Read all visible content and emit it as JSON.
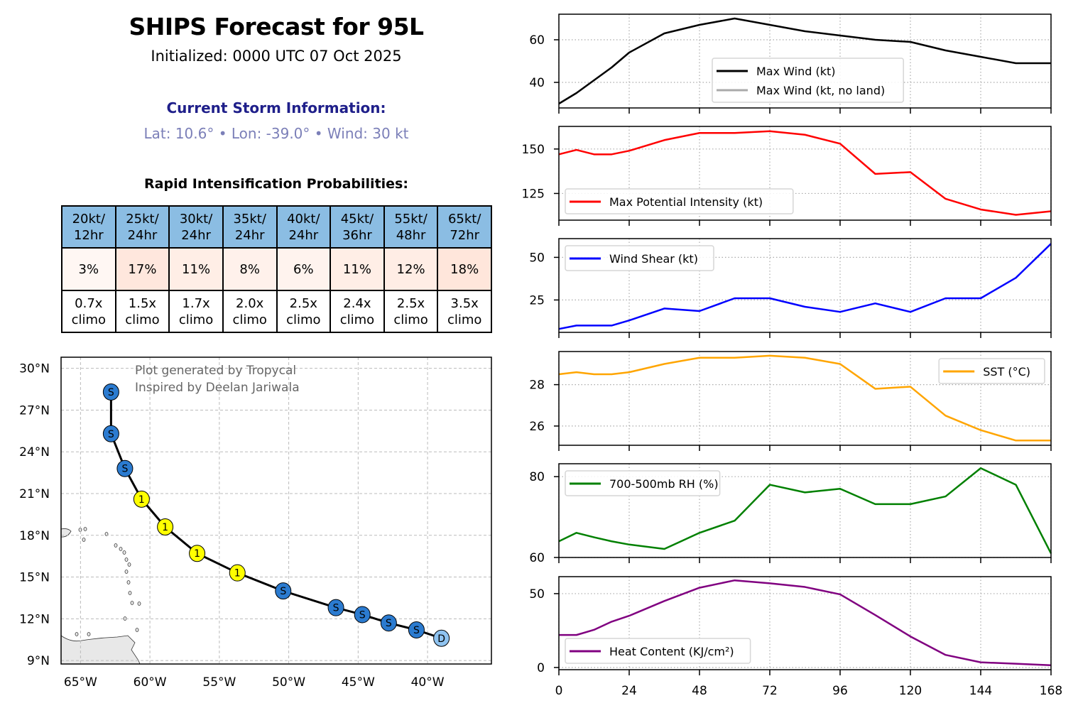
{
  "header": {
    "title": "SHIPS Forecast for 95L",
    "initialized": "Initialized: 0000 UTC 07 Oct 2025",
    "current_heading": "Current Storm Information:",
    "current_values": "Lat: 10.6° • Lon: -39.0° • Wind: 30 kt"
  },
  "ri_table": {
    "heading": "Rapid Intensification Probabilities:",
    "columns": [
      {
        "threshold": "20kt/",
        "period": "12hr",
        "prob": "3%",
        "climo_mult": "0.7x",
        "climo": "climo",
        "p": 3
      },
      {
        "threshold": "25kt/",
        "period": "24hr",
        "prob": "17%",
        "climo_mult": "1.5x",
        "climo": "climo",
        "p": 17
      },
      {
        "threshold": "30kt/",
        "period": "24hr",
        "prob": "11%",
        "climo_mult": "1.7x",
        "climo": "climo",
        "p": 11
      },
      {
        "threshold": "35kt/",
        "period": "24hr",
        "prob": "8%",
        "climo_mult": "2.0x",
        "climo": "climo",
        "p": 8
      },
      {
        "threshold": "40kt/",
        "period": "24hr",
        "prob": "6%",
        "climo_mult": "2.5x",
        "climo": "climo",
        "p": 6
      },
      {
        "threshold": "45kt/",
        "period": "36hr",
        "prob": "11%",
        "climo_mult": "2.4x",
        "climo": "climo",
        "p": 11
      },
      {
        "threshold": "55kt/",
        "period": "48hr",
        "prob": "12%",
        "climo_mult": "2.5x",
        "climo": "climo",
        "p": 12
      },
      {
        "threshold": "65kt/",
        "period": "72hr",
        "prob": "18%",
        "climo_mult": "3.5x",
        "climo": "climo",
        "p": 18
      }
    ]
  },
  "map": {
    "credit_line1": "Plot generated by Tropycal",
    "credit_line2": "Inspired by Deelan Jariwala",
    "lon_ticks": [
      -65,
      -60,
      -55,
      -50,
      -45,
      -40
    ],
    "lon_labels": [
      "65°W",
      "60°W",
      "55°W",
      "50°W",
      "45°W",
      "40°W"
    ],
    "lat_ticks": [
      30,
      27,
      24,
      21,
      18,
      15,
      12,
      9
    ],
    "lat_labels": [
      "30°N",
      "27°N",
      "24°N",
      "21°N",
      "18°N",
      "15°N",
      "12°N",
      "9°N"
    ],
    "xlim": [
      -66.4,
      -35.4
    ],
    "ylim": [
      8.75,
      30.8
    ],
    "track": [
      {
        "lon": -39.0,
        "lat": 10.6,
        "cat": "D"
      },
      {
        "lon": -40.8,
        "lat": 11.2,
        "cat": "S"
      },
      {
        "lon": -42.8,
        "lat": 11.7,
        "cat": "S"
      },
      {
        "lon": -44.7,
        "lat": 12.3,
        "cat": "S"
      },
      {
        "lon": -46.6,
        "lat": 12.8,
        "cat": "S"
      },
      {
        "lon": -50.4,
        "lat": 14.0,
        "cat": "S"
      },
      {
        "lon": -53.7,
        "lat": 15.3,
        "cat": "1"
      },
      {
        "lon": -56.6,
        "lat": 16.7,
        "cat": "1"
      },
      {
        "lon": -58.9,
        "lat": 18.6,
        "cat": "1"
      },
      {
        "lon": -60.6,
        "lat": 20.6,
        "cat": "1"
      },
      {
        "lon": -61.8,
        "lat": 22.8,
        "cat": "S"
      },
      {
        "lon": -62.8,
        "lat": 25.3,
        "cat": "S"
      },
      {
        "lon": -62.8,
        "lat": 28.3,
        "cat": "S"
      }
    ],
    "category_colors": {
      "D": "#8fc3f0",
      "S": "#2b7bd0",
      "1": "#ffff00"
    }
  },
  "chart_data": [
    {
      "type": "line",
      "title": "",
      "xlabel": "",
      "ylabel": "",
      "x": [
        0,
        6,
        12,
        18,
        24,
        36,
        48,
        60,
        72,
        84,
        96,
        108,
        120,
        132,
        144,
        156,
        168
      ],
      "series": [
        {
          "name": "Max Wind (kt)",
          "color": "#000000",
          "values": [
            30,
            35,
            41,
            47,
            54,
            63,
            67,
            70,
            67,
            64,
            62,
            60,
            59,
            55,
            52,
            49,
            49
          ]
        }
      ],
      "legend_extra": [
        {
          "name": "Max Wind (kt, no land)",
          "color": "#aaaaaa"
        }
      ],
      "ylim": [
        28,
        72
      ],
      "yticks": [
        40,
        60
      ],
      "legend": "center",
      "grid": true
    },
    {
      "type": "line",
      "x": [
        0,
        6,
        12,
        18,
        24,
        36,
        48,
        60,
        72,
        84,
        96,
        108,
        120,
        132,
        144,
        156,
        168
      ],
      "series": [
        {
          "name": "Max Potential Intensity (kt)",
          "color": "#ff0000",
          "values": [
            147,
            149.5,
            147,
            147,
            149,
            155,
            159,
            159,
            160,
            158,
            153,
            136,
            137,
            122,
            116,
            113,
            115
          ]
        }
      ],
      "ylim": [
        110,
        162.7
      ],
      "yticks": [
        125,
        150
      ],
      "legend": "lower-left",
      "grid": true
    },
    {
      "type": "line",
      "x": [
        0,
        6,
        12,
        18,
        24,
        36,
        48,
        60,
        72,
        84,
        96,
        108,
        120,
        132,
        144,
        156,
        168
      ],
      "series": [
        {
          "name": "Wind Shear (kt)",
          "color": "#0000ff",
          "values": [
            8,
            10,
            10,
            10,
            13,
            20,
            18.5,
            26,
            26,
            21,
            18,
            23,
            18,
            26,
            26,
            38,
            58
          ]
        }
      ],
      "ylim": [
        6,
        61
      ],
      "yticks": [
        25,
        50
      ],
      "legend": "upper-left",
      "grid": true
    },
    {
      "type": "line",
      "x": [
        0,
        6,
        12,
        18,
        24,
        36,
        48,
        60,
        72,
        84,
        96,
        108,
        120,
        132,
        144,
        156,
        168
      ],
      "series": [
        {
          "name": "SST (°C)",
          "color": "#ffa500",
          "values": [
            28.5,
            28.6,
            28.5,
            28.5,
            28.6,
            29.0,
            29.3,
            29.3,
            29.4,
            29.3,
            29.0,
            27.8,
            27.9,
            26.5,
            25.8,
            25.3,
            25.3
          ]
        }
      ],
      "ylim": [
        25.07,
        29.6
      ],
      "yticks": [
        26,
        28
      ],
      "legend": "upper-right",
      "grid": true
    },
    {
      "type": "line",
      "x": [
        0,
        6,
        12,
        18,
        24,
        36,
        48,
        60,
        72,
        84,
        96,
        108,
        120,
        132,
        144,
        156,
        168
      ],
      "series": [
        {
          "name": "700-500mb RH (%)",
          "color": "#008000",
          "values": [
            64,
            66.1,
            65,
            64,
            63.2,
            62.1,
            66.1,
            69.1,
            78,
            76.1,
            77,
            73.2,
            73.2,
            75.1,
            82.1,
            78,
            61
          ]
        }
      ],
      "ylim": [
        60,
        83.2
      ],
      "yticks": [
        60,
        80
      ],
      "legend": "upper-left",
      "grid": true
    },
    {
      "type": "line",
      "x": [
        0,
        6,
        12,
        18,
        24,
        36,
        48,
        60,
        72,
        84,
        96,
        108,
        120,
        132,
        144,
        156,
        168
      ],
      "series": [
        {
          "name": "Heat Content (KJ/cm²)",
          "color": "#800080",
          "values": [
            22,
            22,
            25.5,
            31,
            35,
            45,
            54,
            59,
            57,
            54.5,
            49.5,
            35.5,
            21,
            8.5,
            3.5,
            2.5,
            1.5
          ]
        }
      ],
      "ylim": [
        -1.5,
        61.5
      ],
      "yticks": [
        0,
        50
      ],
      "legend": "lower-left",
      "grid": true,
      "xticks": [
        0,
        24,
        48,
        72,
        96,
        120,
        144,
        168
      ],
      "xtick_labels": [
        "0",
        "24",
        "48",
        "72",
        "96",
        "120",
        "144",
        "168"
      ],
      "xlim": [
        0,
        168
      ]
    }
  ]
}
